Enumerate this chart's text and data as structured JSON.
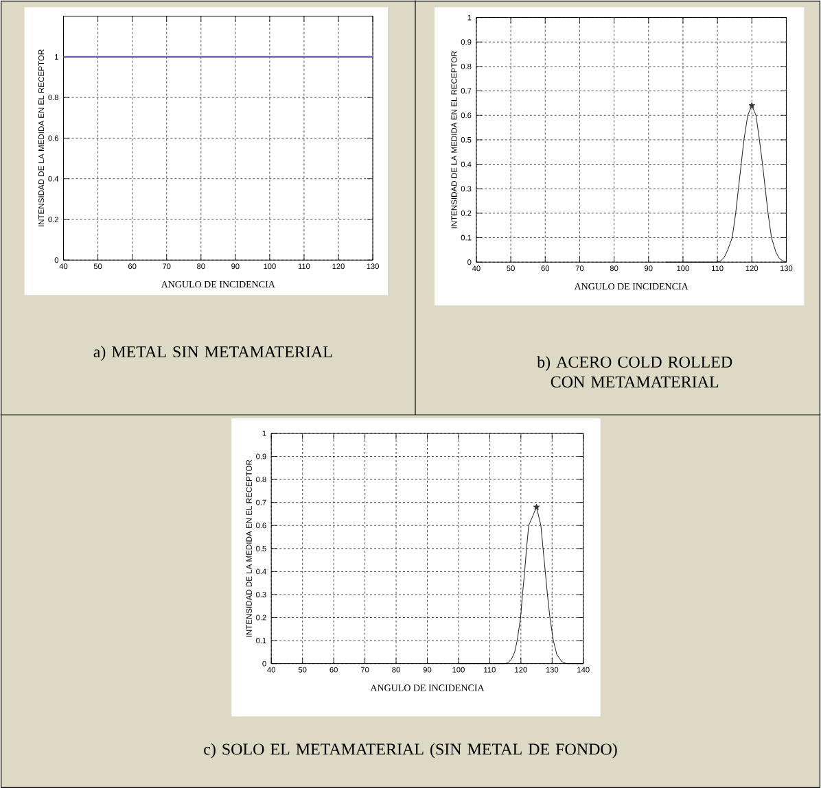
{
  "chart_data": [
    {
      "type": "line",
      "title": "a)  METAL SIN METAMATERIAL",
      "xlabel": "ANGULO DE  INCIDENCIA",
      "ylabel": "INTENSIDAD DE LA MEDIDA EN EL RECEPTOR",
      "xlim": [
        40,
        130
      ],
      "ylim": [
        0,
        1.2
      ],
      "xticks": [
        40,
        50,
        60,
        70,
        80,
        90,
        100,
        110,
        120,
        130
      ],
      "yticks": [
        0,
        0.2,
        0.4,
        0.6,
        0.8,
        1
      ],
      "grid": true,
      "series": [
        {
          "type": "line",
          "color": "#6b5bb0",
          "x": [
            40,
            130
          ],
          "values": [
            1,
            1
          ]
        }
      ]
    },
    {
      "type": "line",
      "title": "b)  ACERO COLD ROLLED CON METAMATERIAL",
      "xlabel": "ANGULO DE  INCIDENCIA",
      "ylabel": "INTENSIDAD DE LA MEDIDA EN EL RECEPTOR",
      "xlim": [
        40,
        130
      ],
      "ylim": [
        0,
        1
      ],
      "xticks": [
        40,
        50,
        60,
        70,
        80,
        90,
        100,
        110,
        120,
        130
      ],
      "yticks": [
        0,
        0.1,
        0.2,
        0.3,
        0.4,
        0.5,
        0.6,
        0.7,
        0.8,
        0.9,
        1
      ],
      "grid": true,
      "series": [
        {
          "type": "line",
          "color": "#000000",
          "x": [
            95,
            110,
            111,
            112,
            113,
            114.3,
            115.3,
            116.1,
            116.9,
            117.7,
            118.8,
            120,
            121.2,
            122.2,
            123.1,
            123.9,
            124.7,
            125.7,
            127,
            128,
            129,
            130
          ],
          "values": [
            0,
            0,
            0.005,
            0.02,
            0.05,
            0.1,
            0.2,
            0.3,
            0.4,
            0.5,
            0.6,
            0.64,
            0.6,
            0.5,
            0.4,
            0.3,
            0.2,
            0.1,
            0.04,
            0.015,
            0.005,
            0
          ]
        },
        {
          "type": "scatter",
          "marker": "star",
          "color": "#333333",
          "x": [
            120
          ],
          "values": [
            0.64
          ]
        }
      ]
    },
    {
      "type": "line",
      "title": "c) SOLO EL METAMATERIAL (SIN METAL DE FONDO)",
      "xlabel": "ANGULO DE  INCIDENCIA",
      "ylabel": "INTENSIDAD DE LA MEDIDA EN EL RECEPTOR",
      "xlim": [
        40,
        140
      ],
      "ylim": [
        0,
        1
      ],
      "xticks": [
        40,
        50,
        60,
        70,
        80,
        90,
        100,
        110,
        120,
        130,
        140
      ],
      "yticks": [
        0,
        0.1,
        0.2,
        0.3,
        0.4,
        0.5,
        0.6,
        0.7,
        0.8,
        0.9,
        1
      ],
      "grid": true,
      "series": [
        {
          "type": "line",
          "color": "#000000",
          "x": [
            100,
            115,
            116,
            117,
            118,
            118.8,
            119.9,
            120.5,
            121.2,
            121.8,
            122.5,
            125,
            126.4,
            127.1,
            127.8,
            128.5,
            129.3,
            130.4,
            131.5,
            133,
            134.5,
            140
          ],
          "values": [
            0,
            0,
            0.005,
            0.02,
            0.05,
            0.1,
            0.2,
            0.3,
            0.4,
            0.5,
            0.6,
            0.68,
            0.6,
            0.5,
            0.4,
            0.3,
            0.2,
            0.1,
            0.04,
            0.01,
            0,
            0
          ]
        },
        {
          "type": "scatter",
          "marker": "star",
          "color": "#333333",
          "x": [
            125
          ],
          "values": [
            0.68
          ]
        }
      ]
    }
  ]
}
